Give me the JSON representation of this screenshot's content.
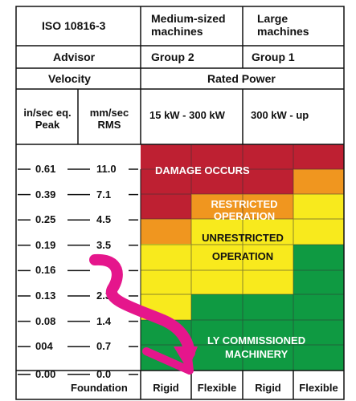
{
  "header": {
    "standard": "ISO 10816-3",
    "medium_l1": "Medium-sized",
    "medium_l2": "machines",
    "large_l1": "Large",
    "large_l2": "machines",
    "advisor": "Advisor",
    "group2": "Group 2",
    "group1": "Group 1",
    "velocity": "Velocity",
    "rated_power": "Rated Power",
    "peak_l1": "in/sec eq.",
    "peak_l2": "Peak",
    "rms_l1": "mm/sec",
    "rms_l2": "RMS",
    "power_medium": "15 kW - 300 kW",
    "power_large": "300 kW - up"
  },
  "scale": [
    {
      "peak": "0.61",
      "rms": "11.0"
    },
    {
      "peak": "0.39",
      "rms": "7.1"
    },
    {
      "peak": "0.25",
      "rms": "4.5"
    },
    {
      "peak": "0.19",
      "rms": "3.5"
    },
    {
      "peak": "0.16",
      "rms": ""
    },
    {
      "peak": "0.13",
      "rms": "2.3"
    },
    {
      "peak": "0.08",
      "rms": "1.4"
    },
    {
      "peak": "004",
      "rms": "0.7"
    },
    {
      "peak": "0.00",
      "rms": "0.0"
    }
  ],
  "zones": {
    "damage": "DAMAGE OCCURS",
    "restricted_l1": "RESTRICTED",
    "restricted_l2": "OPERATION",
    "unrestricted_l1": "UNRESTRICTED",
    "unrestricted_l2": "OPERATION",
    "commissioned_l1": "LY COMMISSIONED",
    "commissioned_l2": "MACHINERY"
  },
  "footer": {
    "foundation": "Foundation",
    "rigid_1": "Rigid",
    "flexible_1": "Flexible",
    "rigid_2": "Rigid",
    "flexible_2": "Flexible"
  },
  "colors": {
    "red": "#be2032",
    "orange": "#f0961f",
    "yellow": "#f8ea1d",
    "green": "#0f9a42",
    "arrow": "#e5168c"
  }
}
